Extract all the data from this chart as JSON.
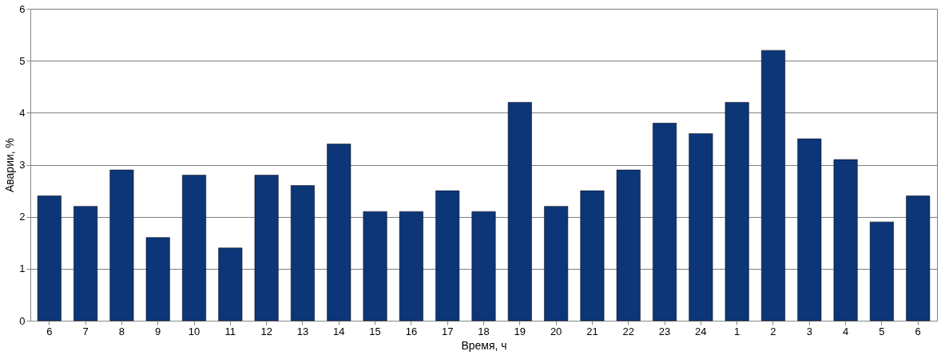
{
  "chart_data": {
    "type": "bar",
    "xlabel": "Время, ч",
    "ylabel": "Аварии, %",
    "categories": [
      "6",
      "7",
      "8",
      "9",
      "10",
      "11",
      "12",
      "13",
      "14",
      "15",
      "16",
      "17",
      "18",
      "19",
      "20",
      "21",
      "22",
      "23",
      "24",
      "1",
      "2",
      "3",
      "4",
      "5",
      "6"
    ],
    "values": [
      2.4,
      2.2,
      2.9,
      1.6,
      2.8,
      1.4,
      2.8,
      2.6,
      3.4,
      2.1,
      2.1,
      2.5,
      2.1,
      4.2,
      2.2,
      2.5,
      2.9,
      3.8,
      3.6,
      4.2,
      5.2,
      3.5,
      3.1,
      1.9,
      2.4
    ],
    "color": "#0d3679",
    "ylim": [
      0,
      6
    ],
    "yticks": [
      0,
      1,
      2,
      3,
      4,
      5,
      6
    ],
    "grid": "y"
  }
}
